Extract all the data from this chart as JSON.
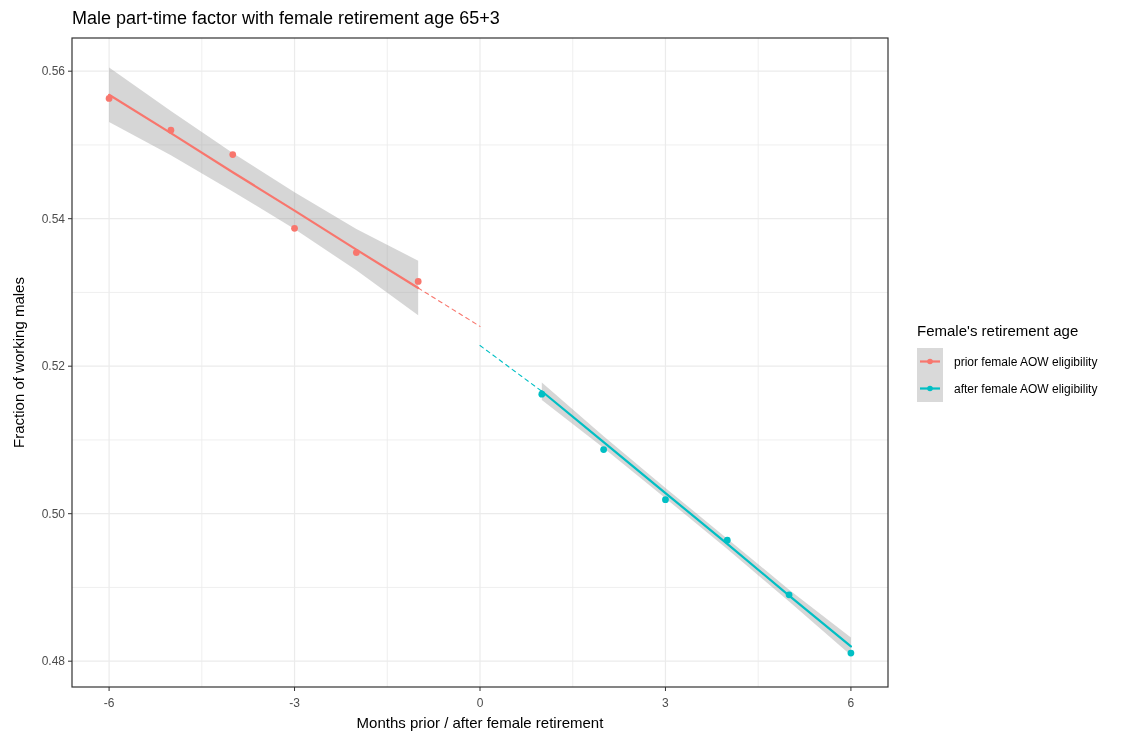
{
  "chart_data": {
    "type": "line",
    "title": "Male part-time factor with female retirement age 65+3",
    "xlabel": "Months prior / after female retirement",
    "ylabel": "Fraction of working males",
    "legend_title": "Female's retirement age",
    "xlim": [
      -6.6,
      6.6
    ],
    "ylim": [
      0.4765,
      0.5645
    ],
    "xticks": [
      -6,
      {
        "value": -4.5,
        "label": null
      },
      -3,
      {
        "value": -1.5,
        "label": null
      },
      0,
      {
        "value": 1.5,
        "label": null
      },
      3,
      {
        "value": 4.5,
        "label": null
      },
      6
    ],
    "yticks": [
      {
        "value": 0.48,
        "label": "0.48"
      },
      {
        "value": 0.49,
        "label": null
      },
      {
        "value": 0.5,
        "label": "0.50"
      },
      {
        "value": 0.51,
        "label": null
      },
      {
        "value": 0.52,
        "label": "0.52"
      },
      {
        "value": 0.53,
        "label": null
      },
      {
        "value": 0.54,
        "label": "0.54"
      },
      {
        "value": 0.55,
        "label": null
      },
      {
        "value": 0.56,
        "label": "0.56"
      }
    ],
    "grid": true,
    "legend": "right",
    "series": [
      {
        "name": "prior female AOW eligibility",
        "color": "#f8766d",
        "x": [
          -6,
          -5,
          -4,
          -3,
          -2,
          -1
        ],
        "values": [
          0.5568,
          0.5516,
          0.5463,
          0.5411,
          0.5358,
          0.5306
        ],
        "lower": [
          0.5531,
          0.5486,
          0.5437,
          0.5386,
          0.533,
          0.5269
        ],
        "upper": [
          0.5605,
          0.5546,
          0.5489,
          0.5436,
          0.5386,
          0.5343
        ],
        "marker": "none",
        "line_style": "solid"
      },
      {
        "name": "after female AOW eligibility",
        "color": "#00bfc4",
        "x": [
          1,
          2,
          3,
          4,
          5,
          6
        ],
        "values": [
          0.5166,
          0.5097,
          0.5028,
          0.4959,
          0.4889,
          0.482
        ],
        "lower": [
          0.5154,
          0.5089,
          0.5021,
          0.4952,
          0.4881,
          0.4808
        ],
        "upper": [
          0.5178,
          0.5105,
          0.5035,
          0.4966,
          0.4897,
          0.4832
        ],
        "marker": "none",
        "line_style": "solid"
      },
      {
        "color": "#f8766d",
        "x": [
          -1,
          0
        ],
        "values": [
          0.5306,
          0.5254
        ],
        "marker": "none",
        "line_style": "dashed"
      },
      {
        "color": "#00bfc4",
        "x": [
          0,
          1
        ],
        "values": [
          0.5228,
          0.5166
        ],
        "marker": "none",
        "line_style": "dashed"
      },
      {
        "type": "scatter",
        "color": "#f8766d",
        "x": [
          -6,
          -5,
          -4,
          -3,
          -2,
          -1
        ],
        "values": [
          0.5563,
          0.552,
          0.5487,
          0.5387,
          0.5354,
          0.5315
        ],
        "marker": "circle"
      },
      {
        "type": "scatter",
        "color": "#00bfc4",
        "x": [
          1,
          2,
          3,
          4,
          5,
          6
        ],
        "values": [
          0.5162,
          0.5087,
          0.5019,
          0.4964,
          0.489,
          0.4811
        ],
        "marker": "circle"
      }
    ]
  }
}
